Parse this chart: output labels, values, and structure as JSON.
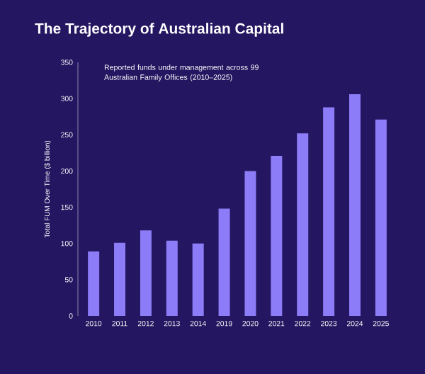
{
  "chart_data": {
    "type": "bar",
    "title": "The Trajectory of Australian Capital",
    "subtitle": "Reported funds under management across 99 Australian Family Offices (2010–2025)",
    "ylabel": "Total FUM Over Time ($ billion)",
    "categories": [
      "2010",
      "2011",
      "2012",
      "2013",
      "2014",
      "2019",
      "2020",
      "2021",
      "2022",
      "2023",
      "2024",
      "2025"
    ],
    "values": [
      89,
      101,
      118,
      104,
      100,
      148,
      200,
      221,
      252,
      288,
      306,
      271
    ],
    "color": "#8c7cf7",
    "ylim": [
      0,
      350
    ],
    "yticks": [
      0,
      50,
      100,
      150,
      200,
      250,
      300,
      350
    ],
    "grid": false
  }
}
